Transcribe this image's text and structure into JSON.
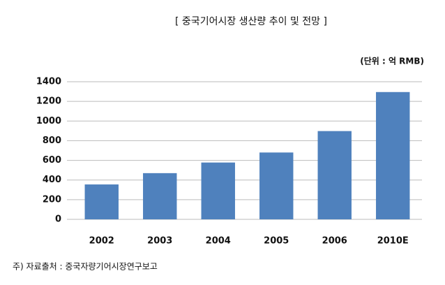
{
  "chart_data": {
    "type": "bar",
    "title": "[ 중국기어시장 생산량 추이 및 전망 ]",
    "unit_label": "(단위 : 억 RMB)",
    "categories": [
      "2002",
      "2003",
      "2004",
      "2005",
      "2006",
      "2010E"
    ],
    "values": [
      355,
      470,
      578,
      680,
      898,
      1295
    ],
    "color": "#4f81bd",
    "ylim": [
      0,
      1400
    ],
    "yticks": [
      0,
      200,
      400,
      600,
      800,
      1000,
      1200,
      1400
    ],
    "grid": true,
    "footnote": "주) 자료출처 : 중국자량기어시장연구보고"
  }
}
